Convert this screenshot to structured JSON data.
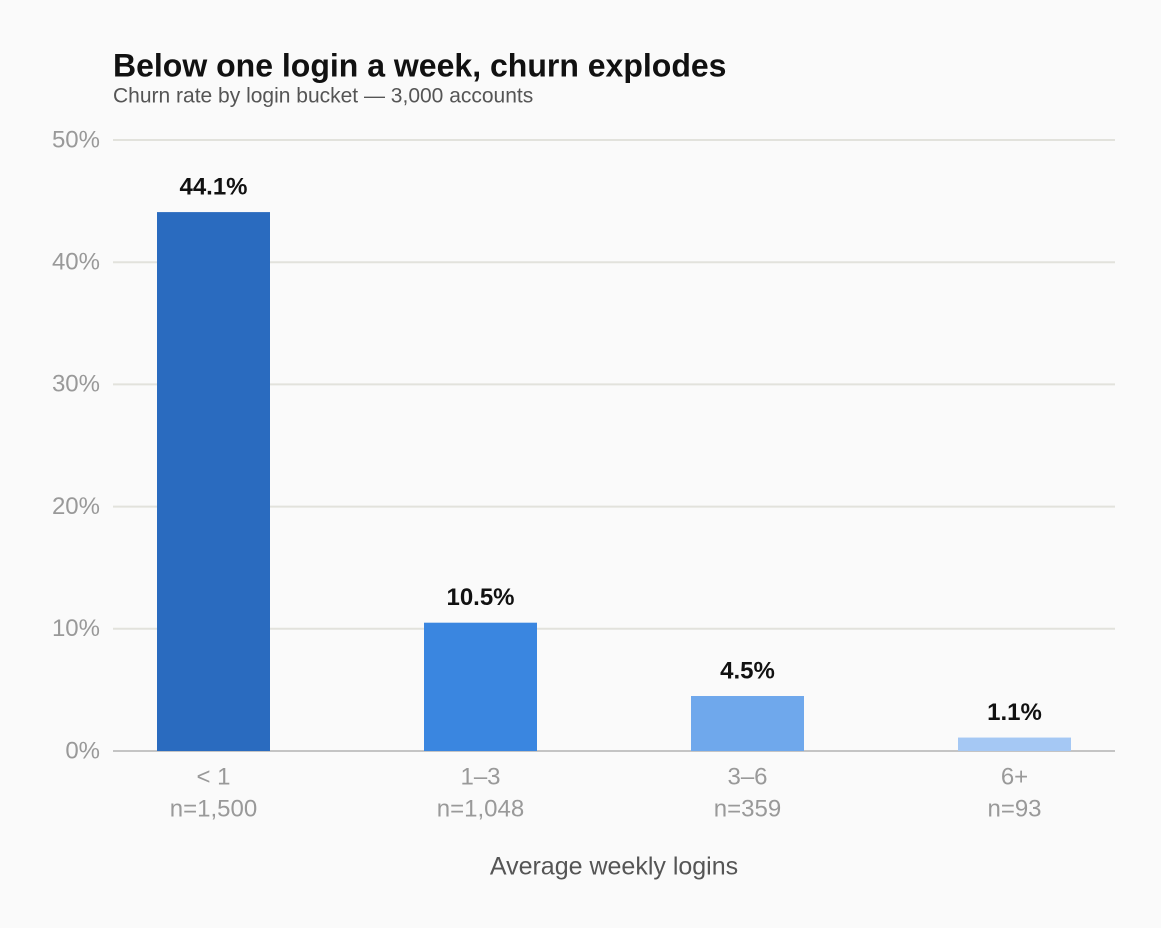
{
  "chart_data": {
    "type": "bar",
    "title": "Below one login a week, churn explodes",
    "subtitle": "Churn rate by login bucket — 3,000 accounts",
    "x_label": "Average weekly logins",
    "categories": [
      "< 1",
      "1–3",
      "3–6",
      "6+"
    ],
    "category_sublabels": [
      "n=1,500",
      "n=1,048",
      "n=359",
      "n=93"
    ],
    "values": [
      44.1,
      10.5,
      4.5,
      1.1
    ],
    "value_labels": [
      "44.1%",
      "10.5%",
      "4.5%",
      "1.1%"
    ],
    "colors": [
      "#2a6bbf",
      "#3a86e0",
      "#6fa8ec",
      "#a5c8f4"
    ],
    "ylim": [
      0,
      50
    ],
    "yticks": [
      {
        "value": 0,
        "label": "0%"
      },
      {
        "value": 10,
        "label": "10%"
      },
      {
        "value": 20,
        "label": "20%"
      },
      {
        "value": 30,
        "label": "30%"
      },
      {
        "value": 40,
        "label": "40%"
      },
      {
        "value": 50,
        "label": "50%"
      }
    ],
    "grid": true
  }
}
